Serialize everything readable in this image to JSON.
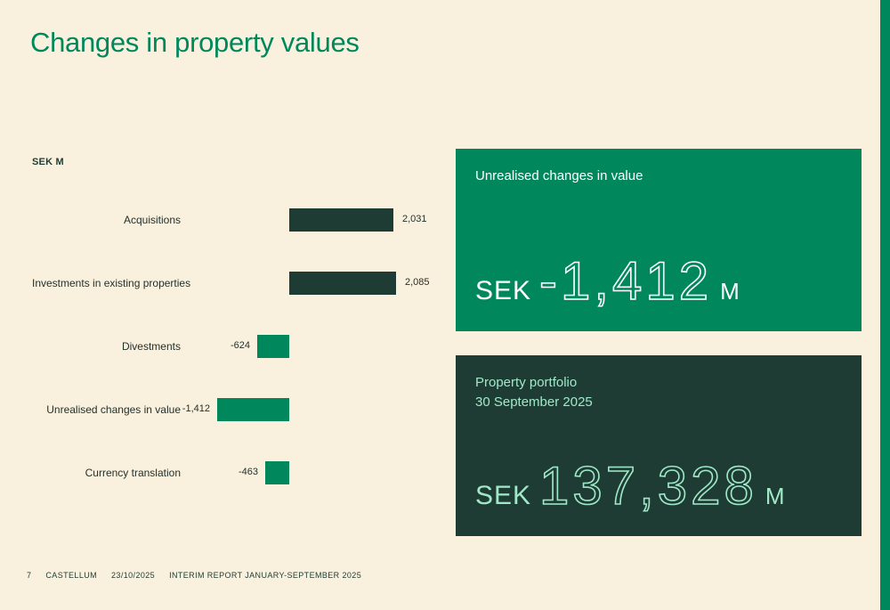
{
  "title": "Changes in property values",
  "colors": {
    "background": "#FAF0DE",
    "brand_green": "#00885C",
    "dark_green": "#1E3C33",
    "mint": "#9FE9C9",
    "white": "#FFFFFF"
  },
  "chart_data": {
    "type": "bar",
    "orientation": "horizontal",
    "unit_label": "SEK M",
    "categories": [
      "Acquisitions",
      "Investments in existing properties",
      "Divestments",
      "Unrealised changes in value",
      "Currency translation"
    ],
    "values": [
      2031,
      2085,
      -624,
      -1412,
      -463
    ],
    "value_labels": [
      "2,031",
      "2,085",
      "-624",
      "-1,412",
      "-463"
    ],
    "positive_color": "#1E3C33",
    "negative_color": "#00885C",
    "baseline_value": 0,
    "grid": false,
    "legend": false
  },
  "cards": [
    {
      "title": "Unrealised changes in value",
      "subtitle": "",
      "prefix": "SEK",
      "value": "-1,412",
      "suffix": "M"
    },
    {
      "title": "Property portfolio",
      "subtitle": "30 September 2025",
      "prefix": "SEK",
      "value": "137,328",
      "suffix": "M"
    }
  ],
  "footer": {
    "page_number": "7",
    "brand": "CASTELLUM",
    "date": "23/10/2025",
    "report": "INTERIM REPORT JANUARY-SEPTEMBER 2025"
  }
}
